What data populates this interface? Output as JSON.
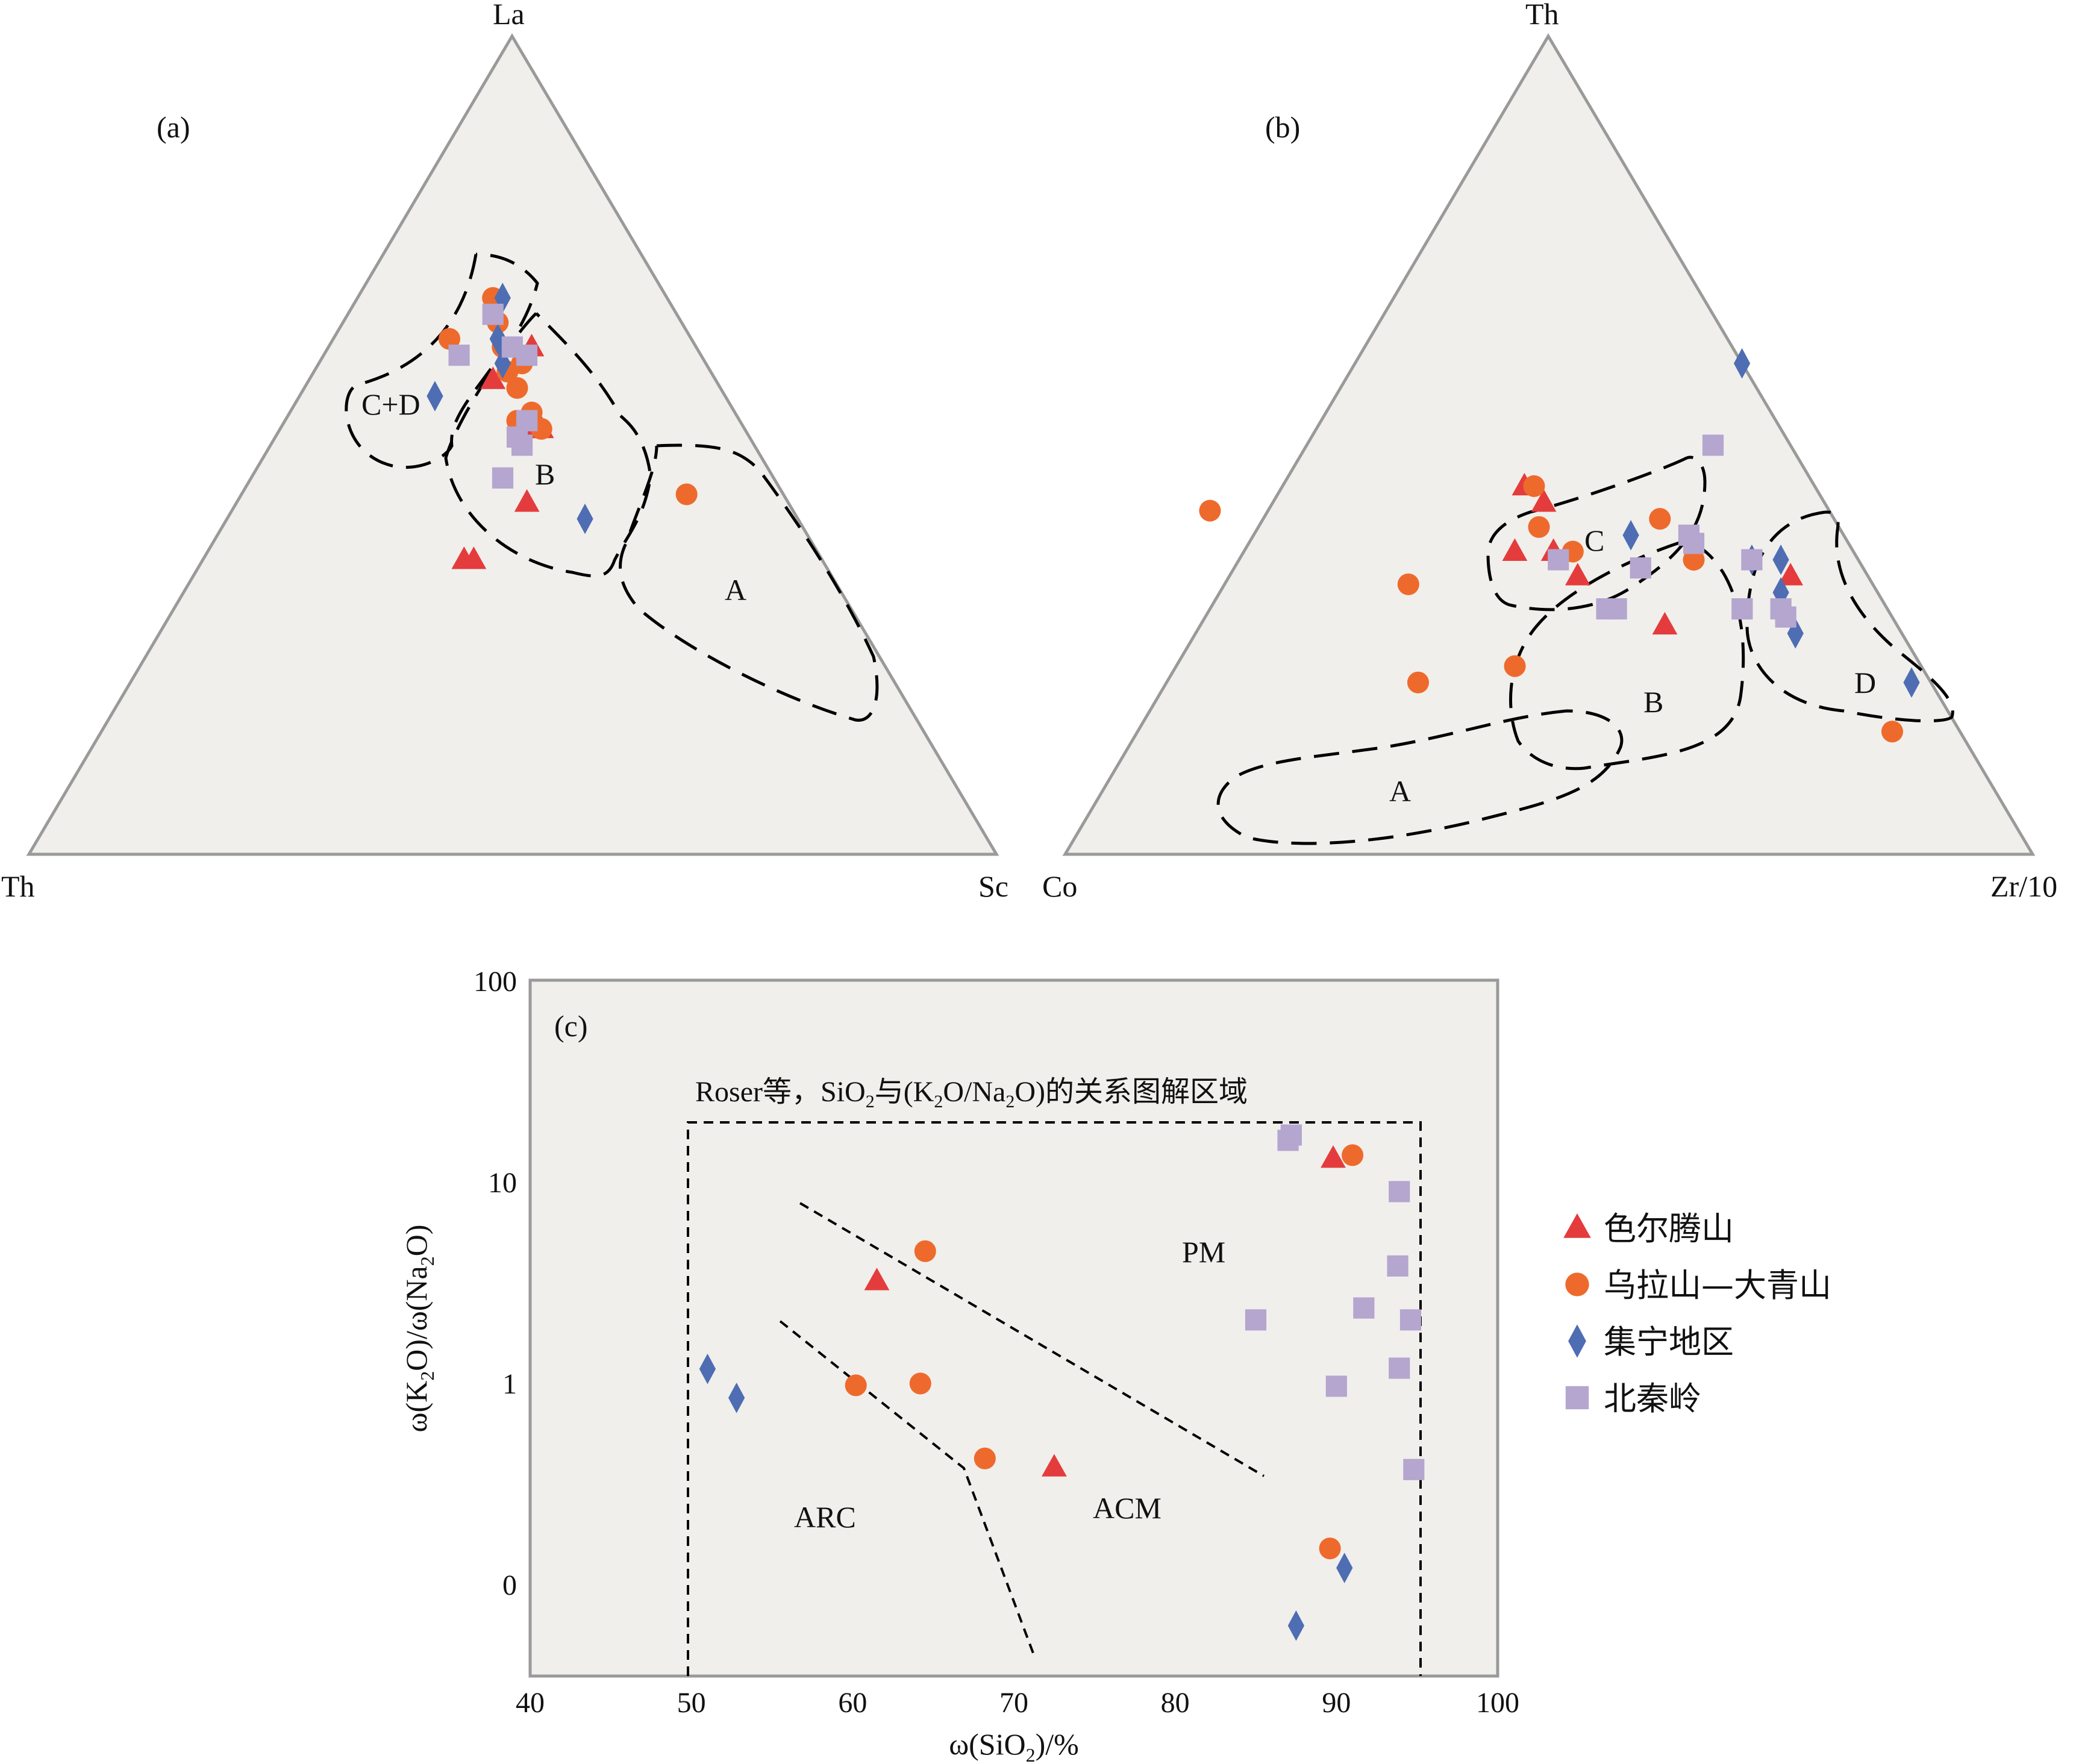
{
  "colors": {
    "background": "#f1efec",
    "frame": "#9a9a9a",
    "triangle": "#e43c3c",
    "circle": "#ee6a2c",
    "diamond": "#4e6db3",
    "square": "#b4a6cf"
  },
  "legend": [
    {
      "key": "triangle",
      "label": "色尔腾山"
    },
    {
      "key": "circle",
      "label": "乌拉山—大青山"
    },
    {
      "key": "diamond",
      "label": "集宁地区"
    },
    {
      "key": "square",
      "label": "北秦岭"
    }
  ],
  "chart_data": [
    {
      "type": "scatter",
      "panel": "(a)",
      "diagram": "ternary",
      "vertices": {
        "top": "La",
        "left": "Th",
        "right": "Sc"
      },
      "regions": [
        "C+D",
        "B",
        "A"
      ],
      "units": "percent of La / Th / Sc",
      "series": [
        {
          "key": "triangle",
          "label": "色尔腾山",
          "points": [
            [
              62,
              17,
              21
            ],
            [
              58,
              23,
              19
            ],
            [
              52,
              21,
              27
            ],
            [
              52,
              22,
              26
            ],
            [
              43,
              27,
              30
            ],
            [
              36,
              37,
              27
            ],
            [
              36,
              36,
              28
            ]
          ]
        },
        {
          "key": "circle",
          "label": "乌拉山—大青山",
          "points": [
            [
              68,
              18,
              14
            ],
            [
              65,
              19,
              16
            ],
            [
              63,
              25,
              12
            ],
            [
              62,
              20,
              18
            ],
            [
              60,
              19,
              21
            ],
            [
              59,
              21,
              20
            ],
            [
              57,
              21,
              22
            ],
            [
              54,
              21,
              25
            ],
            [
              53,
              23,
              24
            ],
            [
              52,
              21,
              27
            ],
            [
              44,
              10,
              46
            ]
          ]
        },
        {
          "key": "diamond",
          "label": "集宁地区",
          "points": [
            [
              68,
              17,
              15
            ],
            [
              63,
              20,
              17
            ],
            [
              62,
              20,
              18
            ],
            [
              60,
              21,
              19
            ],
            [
              56,
              30,
              14
            ],
            [
              41,
              22,
              37
            ]
          ]
        },
        {
          "key": "square",
          "label": "北秦岭",
          "points": [
            [
              66,
              19,
              15
            ],
            [
              62,
              19,
              19
            ],
            [
              61,
              25,
              14
            ],
            [
              61,
              18,
              21
            ],
            [
              53,
              22,
              25
            ],
            [
              53,
              22,
              25
            ],
            [
              51,
              24,
              25
            ],
            [
              50,
              24,
              26
            ],
            [
              46,
              28,
              26
            ]
          ]
        }
      ]
    },
    {
      "type": "scatter",
      "panel": "(b)",
      "diagram": "ternary",
      "vertices": {
        "top": "Th",
        "left": "Co",
        "right": "Zr/10"
      },
      "regions": [
        "C",
        "B",
        "A",
        "D"
      ],
      "units": "percent of Th / Co / Zr/10",
      "series": [
        {
          "key": "triangle",
          "label": "色尔腾山",
          "points": [
            [
              45,
              30,
              25
            ],
            [
              43,
              29,
              28
            ],
            [
              37,
              35,
              28
            ],
            [
              37,
              31,
              32
            ],
            [
              34,
              30,
              36
            ],
            [
              28,
              24,
              48
            ],
            [
              34,
              8,
              58
            ]
          ]
        },
        {
          "key": "circle",
          "label": "乌拉山—大青山",
          "points": [
            [
              45,
              29,
              26
            ],
            [
              42,
              64,
              -6
            ],
            [
              40,
              31,
              29
            ],
            [
              41,
              18,
              41
            ],
            [
              37,
              29,
              34
            ],
            [
              33,
              48,
              19
            ],
            [
              23,
              42,
              35
            ],
            [
              21,
              53,
              26
            ],
            [
              36,
              17,
              47
            ],
            [
              15,
              7,
              78
            ]
          ]
        },
        {
          "key": "diamond",
          "label": "集宁地区",
          "points": [
            [
              60,
              0,
              40
            ],
            [
              39,
              22,
              39
            ],
            [
              36,
              11,
              53
            ],
            [
              36,
              8,
              56
            ],
            [
              32,
              10,
              58
            ],
            [
              27,
              11,
              62
            ],
            [
              21,
              2,
              77
            ]
          ]
        },
        {
          "key": "square",
          "label": "北秦岭",
          "points": [
            [
              50,
              8,
              42
            ],
            [
              39,
              16,
              45
            ],
            [
              38,
              16,
              46
            ],
            [
              36,
              31,
              33
            ],
            [
              36,
              11,
              53
            ],
            [
              35,
              23,
              42
            ],
            [
              30,
              15,
              55
            ],
            [
              30,
              15,
              55
            ],
            [
              30,
              29,
              41
            ],
            [
              30,
              28,
              42
            ],
            [
              30,
              11,
              59
            ],
            [
              29,
              11,
              60
            ]
          ]
        }
      ]
    },
    {
      "type": "scatter",
      "panel": "(c)",
      "title": "Roser等，SiO₂与(K₂O/Na₂O)的关系图解区域",
      "xlabel": "ω(SiO₂)/%",
      "ylabel": "ω(K₂O)/ω(Na₂O)",
      "xlim": [
        40,
        100
      ],
      "xticks": [
        "40",
        "50",
        "60",
        "70",
        "80",
        "90",
        "100"
      ],
      "y_scale": "log",
      "yticks": [
        "0",
        "1",
        "10",
        "100"
      ],
      "regions": [
        "ARC",
        "ACM",
        "PM"
      ],
      "series": [
        {
          "key": "triangle",
          "label": "色尔腾山",
          "points": [
            [
              89.8,
              13
            ],
            [
              61.5,
              3.2
            ],
            [
              72.5,
              0.38
            ]
          ]
        },
        {
          "key": "circle",
          "label": "乌拉山—大青山",
          "points": [
            [
              91,
              13.5
            ],
            [
              64.5,
              4.5
            ],
            [
              60.2,
              0.97
            ],
            [
              64.2,
              0.99
            ],
            [
              68.2,
              0.42
            ],
            [
              89.6,
              0.15
            ]
          ]
        },
        {
          "key": "diamond",
          "label": "集宁地区",
          "points": [
            [
              51,
              1.17
            ],
            [
              52.8,
              0.84
            ],
            [
              90.5,
              0.12
            ],
            [
              87.5,
              0.062
            ]
          ]
        },
        {
          "key": "square",
          "label": "北秦岭",
          "points": [
            [
              87.2,
              17
            ],
            [
              87,
              16
            ],
            [
              93.9,
              8.9
            ],
            [
              85,
              2.05
            ],
            [
              91.7,
              2.35
            ],
            [
              93.8,
              3.8
            ],
            [
              94.6,
              2.05
            ],
            [
              93.9,
              1.18
            ],
            [
              90,
              0.96
            ],
            [
              94.8,
              0.37
            ]
          ]
        }
      ]
    }
  ]
}
